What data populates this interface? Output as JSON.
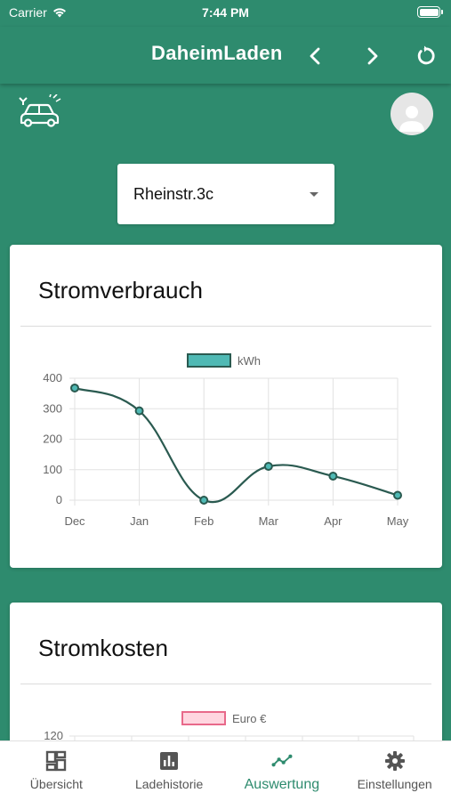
{
  "status": {
    "carrier": "Carrier",
    "time": "7:44 PM"
  },
  "appbar": {
    "title": "DaheimLaden"
  },
  "location_select": {
    "value": "Rheinstr.3c"
  },
  "card1": {
    "title": "Stromverbrauch",
    "chart_data": {
      "type": "line",
      "categories": [
        "Dec",
        "Jan",
        "Feb",
        "Mar",
        "Apr",
        "May"
      ],
      "series": [
        {
          "name": "kWh",
          "values": [
            368,
            293,
            0,
            111,
            79,
            16
          ]
        }
      ],
      "ylim": [
        0,
        400
      ],
      "yticks": [
        0,
        100,
        200,
        300,
        400
      ],
      "legend_position": "top-center",
      "series_color": "#4fb9b4",
      "line_color": "#2a5a50",
      "grid": true
    }
  },
  "card2": {
    "title": "Stromkosten",
    "chart_data": {
      "type": "line",
      "series": [
        {
          "name": "Euro €",
          "values": []
        }
      ],
      "visible_ytick": "120",
      "legend_position": "top-center",
      "series_color": "#ffd6e0",
      "border_color": "#e8698a"
    }
  },
  "nav": {
    "items": [
      {
        "label": "Übersicht",
        "icon": "dashboard-icon"
      },
      {
        "label": "Ladehistorie",
        "icon": "bar-chart-icon"
      },
      {
        "label": "Auswertung",
        "icon": "trending-line-icon",
        "active": true
      },
      {
        "label": "Einstellungen",
        "icon": "gear-icon"
      }
    ]
  }
}
